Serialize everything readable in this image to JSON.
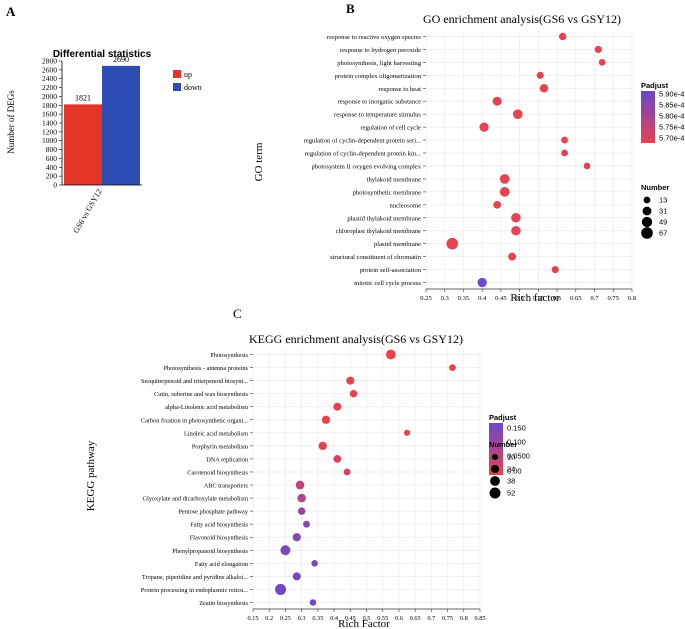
{
  "panels": {
    "a": {
      "label": "A"
    },
    "b": {
      "label": "B"
    },
    "c": {
      "label": "C"
    }
  },
  "colors": {
    "up": "#e53529",
    "down": "#2e4db4",
    "low": "#e8414f",
    "high": "#6a47cc",
    "grid": "#ebebeb"
  },
  "chart_data": [
    {
      "id": "a",
      "type": "bar",
      "title": "Differential statistics",
      "categories": [
        "GS6 vs GSY12"
      ],
      "series": [
        {
          "name": "up",
          "values": [
            1821
          ]
        },
        {
          "name": "down",
          "values": [
            2690
          ]
        }
      ],
      "ylabel": "Number of DEGs",
      "ylim": [
        0,
        2800
      ],
      "yticks": [
        "0",
        "200",
        "400",
        "600",
        "800",
        "1000",
        "1200",
        "1400",
        "1600",
        "1800",
        "2000",
        "2200",
        "2400",
        "2600",
        "2800"
      ],
      "legend": [
        "up",
        "down"
      ],
      "legend_position": "right"
    },
    {
      "id": "b",
      "type": "scatter",
      "title": "GO enrichment analysis(GS6 vs GSY12)",
      "xlabel": "Rich factor",
      "ylabel": "GO term",
      "xlim": [
        0.25,
        0.8
      ],
      "xticks": [
        "0.25",
        "0.3",
        "0.35",
        "0.4",
        "0.45",
        "0.5",
        "0.55",
        "0.6",
        "0.65",
        "0.7",
        "0.75",
        "0.8"
      ],
      "points": [
        {
          "term": "response to reactive oxygen species",
          "x": 0.615,
          "n": 18,
          "p": 0.00057
        },
        {
          "term": "response to hydrogen peroxide",
          "x": 0.71,
          "n": 16,
          "p": 0.00057
        },
        {
          "term": "photosynthesis, light harvesting",
          "x": 0.72,
          "n": 12,
          "p": 0.00057
        },
        {
          "term": "protein complex oligomerization",
          "x": 0.555,
          "n": 15,
          "p": 0.00057
        },
        {
          "term": "response to heat",
          "x": 0.565,
          "n": 27,
          "p": 0.00057
        },
        {
          "term": "response to inorganic substance",
          "x": 0.44,
          "n": 33,
          "p": 0.00057
        },
        {
          "term": "response to temperature stimulus",
          "x": 0.495,
          "n": 40,
          "p": 0.00057
        },
        {
          "term": "regulation of cell cycle",
          "x": 0.405,
          "n": 34,
          "p": 0.00057
        },
        {
          "term": "regulation of cyclin-dependent protein seri...",
          "x": 0.62,
          "n": 13,
          "p": 0.00057
        },
        {
          "term": "regulation of cyclin-dependent protein kin...",
          "x": 0.62,
          "n": 13,
          "p": 0.00057
        },
        {
          "term": "photosystem II oxygen evolving complex",
          "x": 0.68,
          "n": 12,
          "p": 0.00057
        },
        {
          "term": "thylakoid membrane",
          "x": 0.46,
          "n": 40,
          "p": 0.00057
        },
        {
          "term": "photosynthetic membrane",
          "x": 0.46,
          "n": 40,
          "p": 0.00057
        },
        {
          "term": "nucleosome",
          "x": 0.44,
          "n": 20,
          "p": 0.00057
        },
        {
          "term": "plastid thylakoid membrane",
          "x": 0.49,
          "n": 38,
          "p": 0.00057
        },
        {
          "term": "chloroplast thylakoid membrane",
          "x": 0.49,
          "n": 38,
          "p": 0.00057
        },
        {
          "term": "plastid membrane",
          "x": 0.32,
          "n": 67,
          "p": 0.00057
        },
        {
          "term": "structural constituent of chromatin",
          "x": 0.48,
          "n": 22,
          "p": 0.00057
        },
        {
          "term": "protein self-association",
          "x": 0.595,
          "n": 15,
          "p": 0.00057
        },
        {
          "term": "mitotic cell cycle process",
          "x": 0.4,
          "n": 36,
          "p": 0.00059
        }
      ],
      "color_legend": {
        "title": "Padjust",
        "ticks": [
          "5.90e-4",
          "5.85e-4",
          "5.80e-4",
          "5.75e-4",
          "5.70e-4"
        ],
        "range": [
          0.00057,
          0.00059
        ]
      },
      "size_legend": {
        "title": "Number",
        "values": [
          13,
          31,
          49,
          67
        ]
      }
    },
    {
      "id": "c",
      "type": "scatter",
      "title": "KEGG enrichment analysis(GS6 vs GSY12)",
      "xlabel": "Rich Factor",
      "ylabel": "KEGG pathway",
      "xlim": [
        0.15,
        0.85
      ],
      "xticks": [
        "0.15",
        "0.2",
        "0.25",
        "0.3",
        "0.35",
        "0.4",
        "0.45",
        "0.5",
        "0.55",
        "0.6",
        "0.65",
        "0.7",
        "0.75",
        "0.8",
        "0.85"
      ],
      "points": [
        {
          "term": "Photosynthesis",
          "x": 0.575,
          "n": 38,
          "p": 0.0
        },
        {
          "term": "Photosynthesis - antenna proteins",
          "x": 0.765,
          "n": 13,
          "p": 0.0
        },
        {
          "term": "Sesquiterpenoid and triterpenoid biosynt...",
          "x": 0.45,
          "n": 22,
          "p": 0.0
        },
        {
          "term": "Cutin, suberine and wax biosynthesis",
          "x": 0.46,
          "n": 18,
          "p": 0.0
        },
        {
          "term": "alpha-Linolenic acid metabolism",
          "x": 0.41,
          "n": 22,
          "p": 0.0
        },
        {
          "term": "Carbon fixation in photosynthetic organi...",
          "x": 0.375,
          "n": 24,
          "p": 0.0
        },
        {
          "term": "Linoleic acid metabolism",
          "x": 0.625,
          "n": 10,
          "p": 0.0
        },
        {
          "term": "Porphyrin metabolism",
          "x": 0.365,
          "n": 25,
          "p": 0.0
        },
        {
          "term": "DNA replication",
          "x": 0.41,
          "n": 20,
          "p": 0.02
        },
        {
          "term": "Carotenoid biosynthesis",
          "x": 0.44,
          "n": 14,
          "p": 0.02
        },
        {
          "term": "ABC transporters",
          "x": 0.295,
          "n": 28,
          "p": 0.05
        },
        {
          "term": "Glyoxylate and dicarboxylate metabolism",
          "x": 0.3,
          "n": 26,
          "p": 0.07
        },
        {
          "term": "Pentose phosphate pathway",
          "x": 0.3,
          "n": 18,
          "p": 0.11
        },
        {
          "term": "Fatty acid biosynthesis",
          "x": 0.315,
          "n": 14,
          "p": 0.12
        },
        {
          "term": "Flavonoid biosynthesis",
          "x": 0.285,
          "n": 24,
          "p": 0.13
        },
        {
          "term": "Phenylpropanoid biosynthesis",
          "x": 0.25,
          "n": 40,
          "p": 0.13
        },
        {
          "term": "Fatty acid elongation",
          "x": 0.34,
          "n": 12,
          "p": 0.14
        },
        {
          "term": "Tropane, piperidine and pyridine alkaloi...",
          "x": 0.285,
          "n": 22,
          "p": 0.14
        },
        {
          "term": "Protein processing in endoplasmic reticu...",
          "x": 0.235,
          "n": 52,
          "p": 0.15
        },
        {
          "term": "Zeatin biosynthesis",
          "x": 0.335,
          "n": 12,
          "p": 0.15
        }
      ],
      "color_legend": {
        "title": "Padjust",
        "ticks": [
          "0.150",
          "0.100",
          "0.0500",
          "0.00"
        ],
        "range": [
          0.0,
          0.16
        ]
      },
      "size_legend": {
        "title": "Number",
        "values": [
          10,
          24,
          38,
          52
        ]
      }
    }
  ]
}
